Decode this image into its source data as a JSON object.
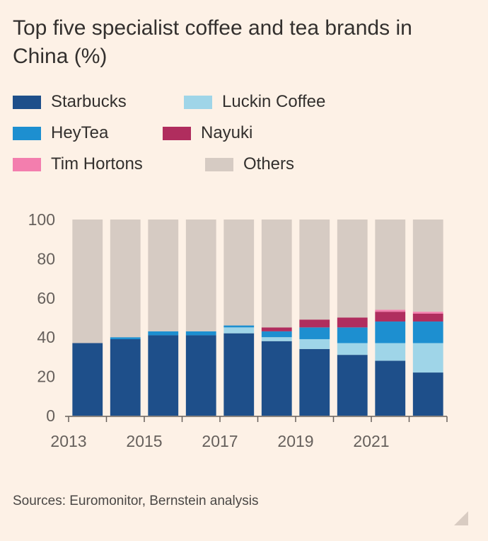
{
  "title": "Top five specialist coffee and tea brands in China (%)",
  "source": "Sources: Euromonitor, Bernstein analysis",
  "legend": [
    {
      "label": "Starbucks",
      "color": "#1e4f8a"
    },
    {
      "label": "Luckin Coffee",
      "color": "#9fd5e8"
    },
    {
      "label": "HeyTea",
      "color": "#1d8fd0"
    },
    {
      "label": "Nayuki",
      "color": "#b02d5e"
    },
    {
      "label": "Tim Hortons",
      "color": "#f37eae"
    },
    {
      "label": "Others",
      "color": "#d6cbc3"
    }
  ],
  "chart_data": {
    "type": "bar",
    "stacked": true,
    "categories": [
      "2013",
      "2014",
      "2015",
      "2016",
      "2017",
      "2018",
      "2019",
      "2020",
      "2021",
      "2022"
    ],
    "x_tick_labels": [
      "2013",
      "2015",
      "2017",
      "2019",
      "2021"
    ],
    "y_ticks": [
      0,
      20,
      40,
      60,
      80,
      100
    ],
    "ylim": [
      0,
      100
    ],
    "grid": false,
    "legend_position": "top",
    "series": [
      {
        "name": "Starbucks",
        "color": "#1e4f8a",
        "values": [
          37,
          39,
          41,
          41,
          42,
          38,
          34,
          31,
          28,
          22
        ]
      },
      {
        "name": "Luckin Coffee",
        "color": "#9fd5e8",
        "values": [
          0,
          0,
          0,
          0,
          3,
          2,
          5,
          6,
          9,
          15
        ]
      },
      {
        "name": "HeyTea",
        "color": "#1d8fd0",
        "values": [
          0,
          1,
          2,
          2,
          1,
          3,
          6,
          8,
          11,
          11
        ]
      },
      {
        "name": "Nayuki",
        "color": "#b02d5e",
        "values": [
          0,
          0,
          0,
          0,
          0,
          2,
          4,
          5,
          5,
          4
        ]
      },
      {
        "name": "Tim Hortons",
        "color": "#f37eae",
        "values": [
          0,
          0,
          0,
          0,
          0,
          0,
          0,
          0,
          1,
          1
        ]
      },
      {
        "name": "Others",
        "color": "#d6cbc3",
        "values": [
          63,
          60,
          57,
          57,
          54,
          55,
          51,
          50,
          46,
          47
        ]
      }
    ]
  }
}
